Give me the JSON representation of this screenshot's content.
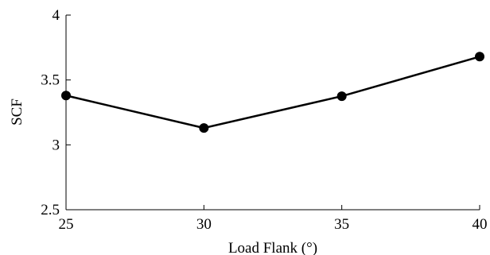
{
  "chart_data": {
    "type": "line",
    "xlabel": "Load Flank (°)",
    "ylabel": "SCF",
    "x": [
      25,
      30,
      35,
      40
    ],
    "series": [
      {
        "values": [
          3.38,
          3.13,
          3.375,
          3.68
        ]
      }
    ],
    "xlim": [
      25,
      40
    ],
    "ylim": [
      2.5,
      4
    ],
    "xticks": [
      "25",
      "30",
      "35",
      "40"
    ],
    "yticks": [
      "2.5",
      "3",
      "3.5",
      "4"
    ],
    "grid": false,
    "markers": true,
    "line_color": "#000000",
    "marker_color": "#000000"
  }
}
